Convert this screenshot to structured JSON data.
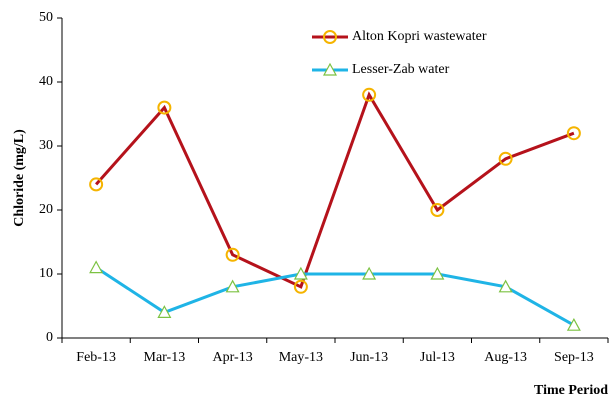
{
  "chart_data": {
    "type": "line",
    "x_label": "Time Period",
    "y_label": "Chloride (mg/L)",
    "categories": [
      "Feb-13",
      "Mar-13",
      "Apr-13",
      "May-13",
      "Jun-13",
      "Jul-13",
      "Aug-13",
      "Sep-13"
    ],
    "series": [
      {
        "name": "Alton Kopri wastewater",
        "color": "#b5121b",
        "marker": "circle",
        "marker_color": "#f5b400",
        "values": [
          24,
          36,
          13,
          8,
          38,
          20,
          28,
          32
        ]
      },
      {
        "name": "Lesser-Zab water",
        "color": "#1fb4e6",
        "marker": "triangle",
        "marker_color": "#7cc242",
        "values": [
          11,
          4,
          8,
          10,
          10,
          10,
          8,
          2
        ]
      }
    ],
    "ylim": [
      0,
      50
    ],
    "yticks": [
      0,
      10,
      20,
      30,
      40,
      50
    ],
    "grid": false
  }
}
